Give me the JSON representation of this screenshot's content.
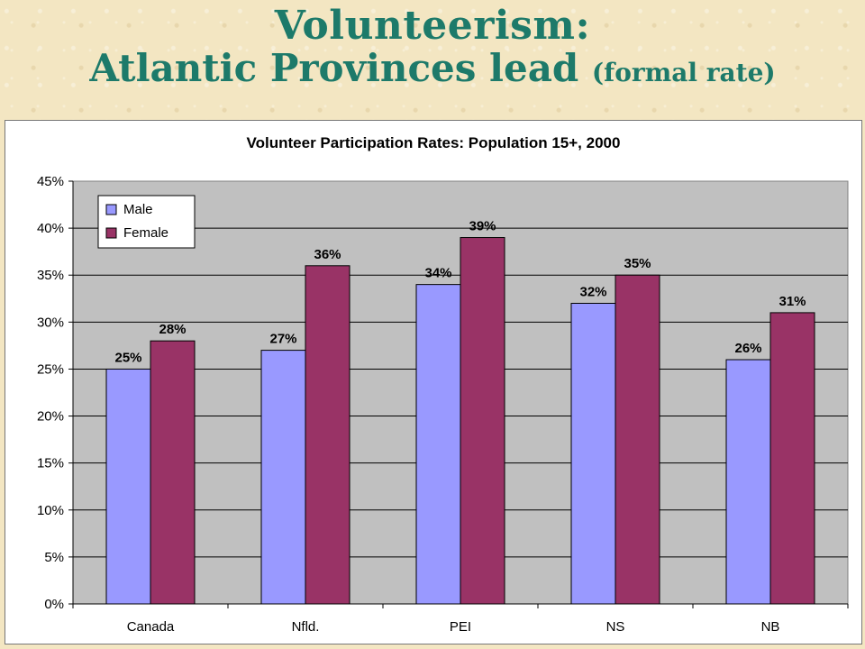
{
  "slide": {
    "title_line1": "Volunteerism:",
    "title_line2_main": "Atlantic Provinces lead",
    "title_line2_small": "(formal rate)"
  },
  "colors": {
    "title": "#1d7a6a",
    "male": "#9999ff",
    "female": "#993366",
    "plot_bg": "#c0c0c0"
  },
  "chart_data": {
    "type": "bar",
    "title": "Volunteer Participation Rates: Population 15+, 2000",
    "xlabel": "",
    "ylabel": "",
    "categories": [
      "Canada",
      "Nfld.",
      "PEI",
      "NS",
      "NB"
    ],
    "series": [
      {
        "name": "Male",
        "values": [
          25,
          27,
          34,
          32,
          26
        ],
        "labels": [
          "25%",
          "27%",
          "34%",
          "32%",
          "26%"
        ]
      },
      {
        "name": "Female",
        "values": [
          28,
          36,
          39,
          35,
          31
        ],
        "labels": [
          "28%",
          "36%",
          "39%",
          "35%",
          "31%"
        ]
      }
    ],
    "ylim": [
      0,
      45
    ],
    "yticks": [
      "0%",
      "5%",
      "10%",
      "15%",
      "20%",
      "25%",
      "30%",
      "35%",
      "40%",
      "45%"
    ],
    "grid": true,
    "legend_position": "top-left"
  }
}
